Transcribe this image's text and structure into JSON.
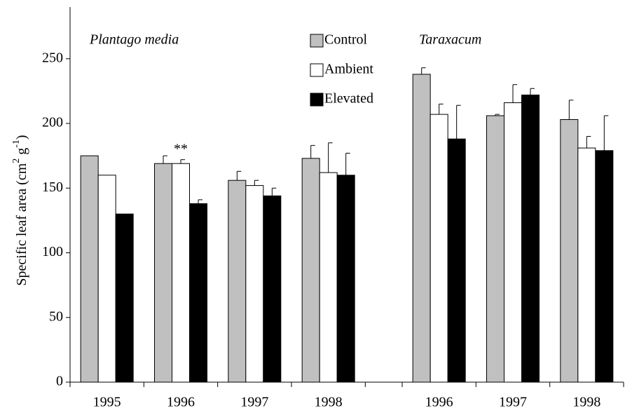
{
  "chart_data": {
    "type": "bar",
    "ylabel_parts": [
      "Specific leaf area (cm",
      "2",
      " g",
      "-1",
      ")"
    ],
    "annotations": [
      "Plantago media",
      "Taraxacum",
      "**"
    ],
    "categories": [
      "1995",
      "1996",
      "1997",
      "1998",
      null,
      "1996",
      "1997",
      "1998"
    ],
    "series": [
      {
        "name": "Control",
        "color": "#c0c0c0",
        "values": [
          175,
          169,
          156,
          173,
          null,
          238,
          206,
          203
        ],
        "errors": [
          null,
          6,
          7,
          10,
          null,
          5,
          1,
          15
        ]
      },
      {
        "name": "Ambient",
        "color": "#ffffff",
        "values": [
          160,
          169,
          152,
          162,
          null,
          207,
          216,
          181
        ],
        "errors": [
          null,
          3,
          4,
          23,
          null,
          8,
          14,
          9
        ]
      },
      {
        "name": "Elevated",
        "color": "#000000",
        "values": [
          130,
          138,
          144,
          160,
          null,
          188,
          222,
          179
        ],
        "errors": [
          null,
          3,
          6,
          17,
          null,
          26,
          5,
          27
        ]
      }
    ],
    "ylim": [
      0,
      290
    ],
    "yticks": [
      0,
      50,
      100,
      150,
      200,
      250
    ],
    "grid": false
  }
}
